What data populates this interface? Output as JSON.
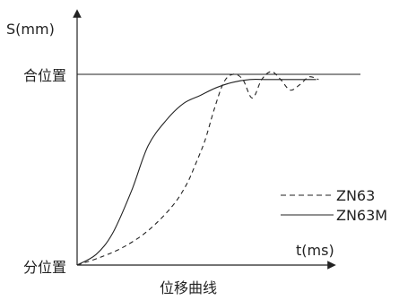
{
  "chart_data": {
    "type": "line",
    "title": "位移曲线",
    "xlabel": "t(ms)",
    "ylabel": "S(mm)",
    "ytick_labels": [
      "合位置",
      "分位置"
    ],
    "legend_placement": "right",
    "ylim": [
      0,
      1
    ],
    "xlim": [
      0,
      100
    ],
    "series": [
      {
        "name": "ZN63",
        "style": "dashed",
        "color": "#222222",
        "x": [
          0,
          10,
          20,
          30,
          40,
          46,
          50,
          54,
          58,
          62,
          66,
          70,
          74,
          78,
          82,
          86,
          90,
          94,
          98,
          102
        ],
        "y": [
          0,
          0.03,
          0.07,
          0.13,
          0.22,
          0.3,
          0.38,
          0.47,
          0.59,
          0.69,
          0.72,
          0.7,
          0.63,
          0.7,
          0.73,
          0.7,
          0.66,
          0.68,
          0.71,
          0.7
        ]
      },
      {
        "name": "ZN63M",
        "style": "solid",
        "color": "#222222",
        "x": [
          0,
          8,
          15,
          23,
          30,
          38,
          45,
          52,
          59,
          66,
          73,
          80,
          87,
          94,
          101
        ],
        "y": [
          0,
          0.04,
          0.12,
          0.28,
          0.45,
          0.55,
          0.61,
          0.64,
          0.67,
          0.69,
          0.7,
          0.7,
          0.7,
          0.7,
          0.7
        ]
      }
    ]
  }
}
